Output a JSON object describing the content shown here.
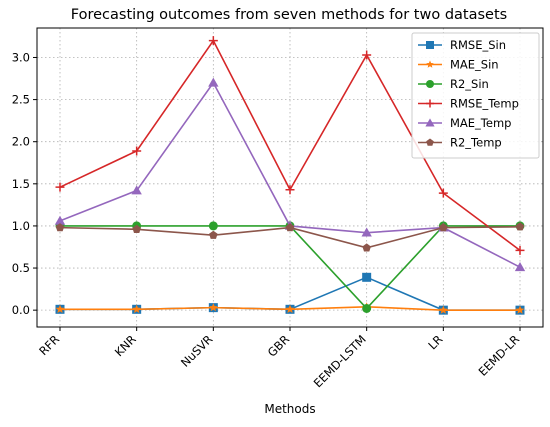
{
  "chart_data": {
    "type": "line",
    "title": "Forecasting outcomes from seven methods for two datasets",
    "xlabel": "Methods",
    "ylabel": "",
    "categories": [
      "RFR",
      "KNR",
      "NuSVR",
      "GBR",
      "EEMD-LSTM",
      "LR",
      "EEMD-LR"
    ],
    "ylim": [
      -0.2,
      3.35
    ],
    "yticks": [
      "0.0",
      "0.5",
      "1.0",
      "1.5",
      "2.0",
      "2.5",
      "3.0"
    ],
    "grid": true,
    "legend_position": "top-right",
    "series": [
      {
        "name": "RMSE_Sin",
        "color": "#1f77b4",
        "marker": "square",
        "values": [
          0.01,
          0.01,
          0.03,
          0.01,
          0.39,
          0.0,
          0.0
        ]
      },
      {
        "name": "MAE_Sin",
        "color": "#ff7f0e",
        "marker": "star",
        "values": [
          0.01,
          0.01,
          0.03,
          0.01,
          0.04,
          0.0,
          0.0
        ]
      },
      {
        "name": "R2_Sin",
        "color": "#2ca02c",
        "marker": "circle",
        "values": [
          1.0,
          1.0,
          1.0,
          1.0,
          0.02,
          1.0,
          1.0
        ]
      },
      {
        "name": "RMSE_Temp",
        "color": "#d62728",
        "marker": "plus",
        "values": [
          1.46,
          1.89,
          3.2,
          1.43,
          3.03,
          1.39,
          0.71
        ]
      },
      {
        "name": "MAE_Temp",
        "color": "#9467bd",
        "marker": "triangle",
        "values": [
          1.06,
          1.42,
          2.7,
          1.0,
          0.92,
          0.98,
          0.51
        ]
      },
      {
        "name": "R2_Temp",
        "color": "#8c564b",
        "marker": "pentagon",
        "values": [
          0.98,
          0.96,
          0.89,
          0.98,
          0.74,
          0.98,
          0.99
        ]
      }
    ]
  }
}
